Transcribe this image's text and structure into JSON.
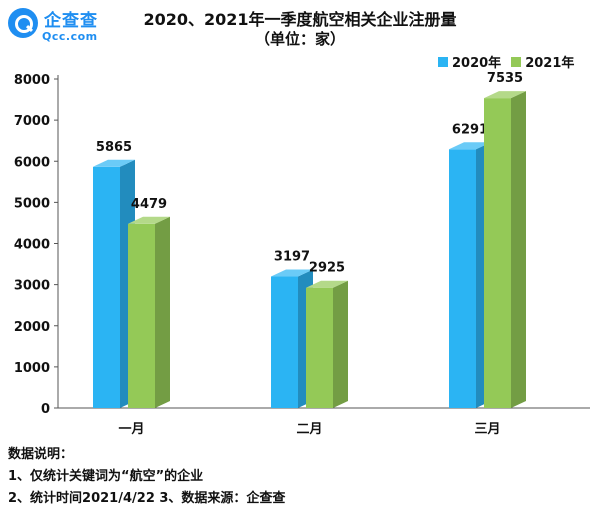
{
  "logo": {
    "name": "企查查",
    "domain": "Qcc.com",
    "brand_color": "#1f8ef1"
  },
  "chart_data": {
    "type": "bar",
    "title": "2020、2021年一季度航空相关企业注册量",
    "subtitle": "（单位：家）",
    "categories": [
      "一月",
      "二月",
      "三月"
    ],
    "series": [
      {
        "name": "2020年",
        "values": [
          5865,
          3197,
          6291
        ],
        "color": "#2bb4f3"
      },
      {
        "name": "2021年",
        "values": [
          4479,
          2925,
          7535
        ],
        "color": "#94c957"
      }
    ],
    "yticks": [
      0,
      1000,
      2000,
      3000,
      4000,
      5000,
      6000,
      7000,
      8000
    ],
    "ylim": [
      0,
      8000
    ],
    "grid": false,
    "legend_position": "top-right"
  },
  "notes": {
    "heading": "数据说明：",
    "line1": "1、仅统计关键词为“航空”的企业",
    "line2": "2、统计时间2021/4/22   3、数据来源：企查查"
  }
}
